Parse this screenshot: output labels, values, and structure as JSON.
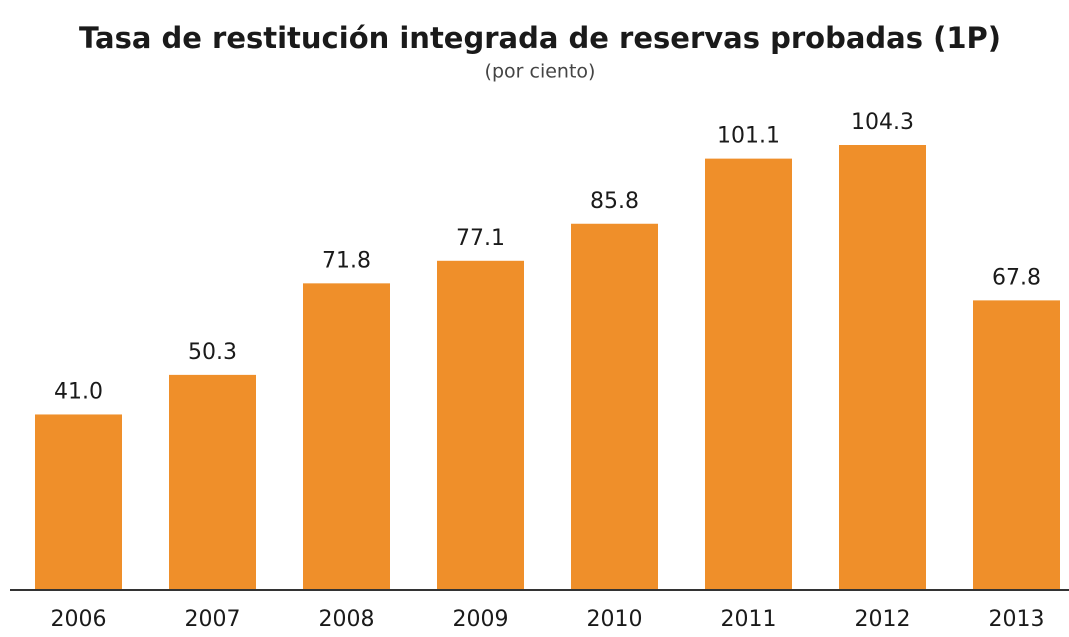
{
  "chart_data": {
    "type": "bar",
    "title": "Tasa de restitución integrada de reservas probadas (1P)",
    "subtitle": "(por ciento)",
    "categories": [
      "2006",
      "2007",
      "2008",
      "2009",
      "2010",
      "2011",
      "2012",
      "2013"
    ],
    "values": [
      41.0,
      50.3,
      71.8,
      77.1,
      85.8,
      101.1,
      104.3,
      67.8
    ],
    "value_labels": [
      "41.0",
      "50.3",
      "71.8",
      "77.1",
      "85.8",
      "101.1",
      "104.3",
      "67.8"
    ],
    "color": "#ef8f2a"
  }
}
